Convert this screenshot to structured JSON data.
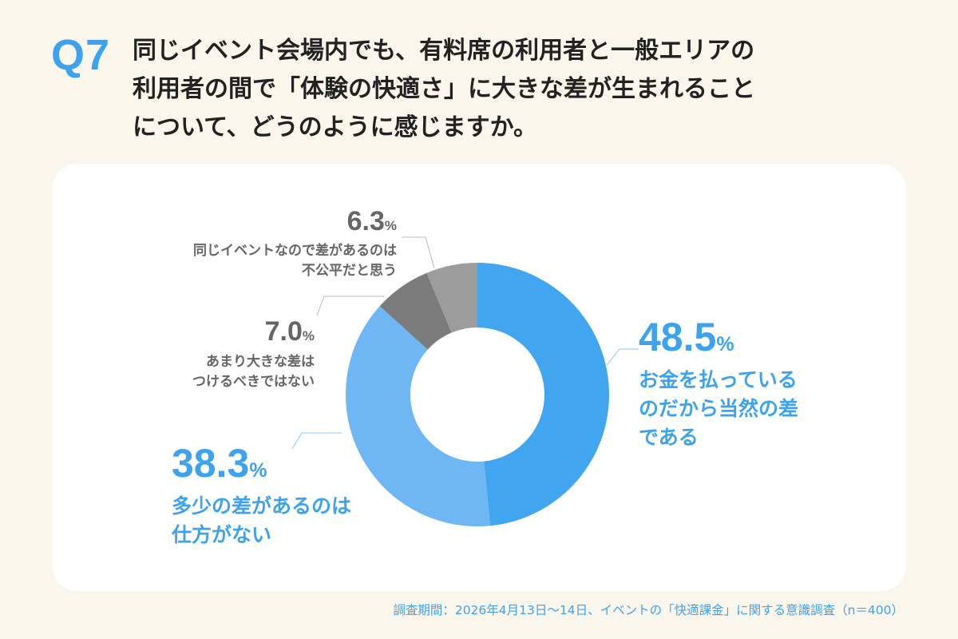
{
  "question": {
    "number": "Q7",
    "lines": [
      "同じイベント会場内でも、有料席の利用者と一般エリアの",
      "利用者の間で「体験の快適さ」に大きな差が生まれること",
      "について、どうのように感じますか。"
    ]
  },
  "footnote": "調査期間：2026年4月13日～14日、イベントの「快適課金」に関する意識調査（n＝400）",
  "chart_data": {
    "type": "pie",
    "donut": true,
    "unit": "%",
    "start": "top, clockwise",
    "slices": [
      {
        "label_lines": [
          "お金を払っている",
          "のだから当然の差",
          "である"
        ],
        "value": 48.5,
        "value_text": "48.5",
        "color": "#42a5f0"
      },
      {
        "label_lines": [
          "多少の差があるのは",
          "仕方がない"
        ],
        "value": 38.3,
        "value_text": "38.3",
        "color": "#6fb7f4"
      },
      {
        "label_lines": [
          "あまり大きな差は",
          "つけるべきではない"
        ],
        "value": 7.0,
        "value_text": "7.0",
        "color": "#7b7b7b"
      },
      {
        "label_lines": [
          "同じイベントなので差があるのは",
          "不公平だと思う"
        ],
        "value": 6.3,
        "value_text": "6.3",
        "color": "#9c9c9c"
      }
    ]
  }
}
